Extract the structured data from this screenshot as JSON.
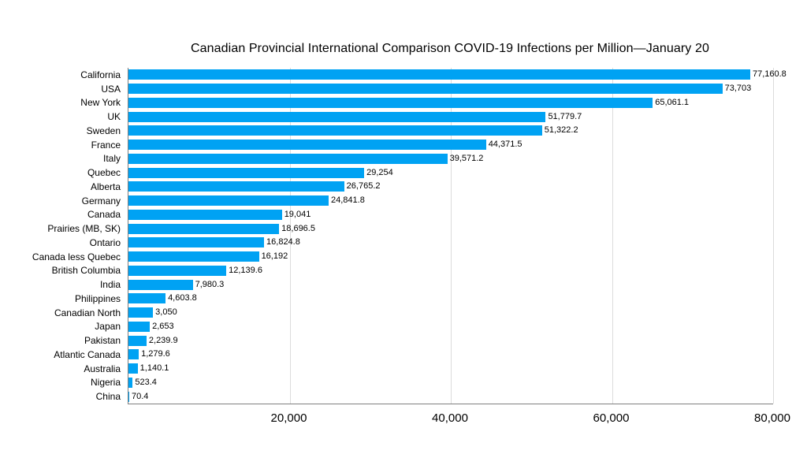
{
  "chart_data": {
    "type": "bar",
    "orientation": "horizontal",
    "title": "Canadian Provincial International Comparison COVID-19 Infections per Million—January 20",
    "categories": [
      "California",
      "USA",
      "New York",
      "UK",
      "Sweden",
      "France",
      "Italy",
      "Quebec",
      "Alberta",
      "Germany",
      "Canada",
      "Prairies (MB, SK)",
      "Ontario",
      "Canada less Quebec",
      "British Columbia",
      "India",
      "Philippines",
      "Canadian North",
      "Japan",
      "Pakistan",
      "Atlantic Canada",
      "Australia",
      "Nigeria",
      "China"
    ],
    "values": [
      77160.8,
      73703,
      65061.1,
      51779.7,
      51322.2,
      44371.5,
      39571.2,
      29254,
      26765.2,
      24841.8,
      19041,
      18696.5,
      16824.8,
      16192,
      12139.6,
      7980.3,
      4603.8,
      3050,
      2653,
      2239.9,
      1279.6,
      1140.1,
      523.4,
      70.4
    ],
    "value_labels": [
      "77,160.8",
      "73,703",
      "65,061.1",
      "51,779.7",
      "51,322.2",
      "44,371.5",
      "39,571.2",
      "29,254",
      "26,765.2",
      "24,841.8",
      "19,041",
      "18,696.5",
      "16,824.8",
      "16,192",
      "12,139.6",
      "7,980.3",
      "4,603.8",
      "3,050",
      "2,653",
      "2,239.9",
      "1,279.6",
      "1,140.1",
      "523.4",
      "70.4"
    ],
    "xlabel": "",
    "ylabel": "",
    "xlim": [
      0,
      80000
    ],
    "x_ticks": [
      20000,
      40000,
      60000,
      80000
    ],
    "x_tick_labels": [
      "20,000",
      "40,000",
      "60,000",
      "80,000"
    ],
    "grid": "vertical",
    "legend": "none",
    "bar_color": "#00A2F3",
    "gridline_color": "#dcdcdc",
    "axis_color": "#7f7f7f",
    "background_color": "#ffffff"
  }
}
